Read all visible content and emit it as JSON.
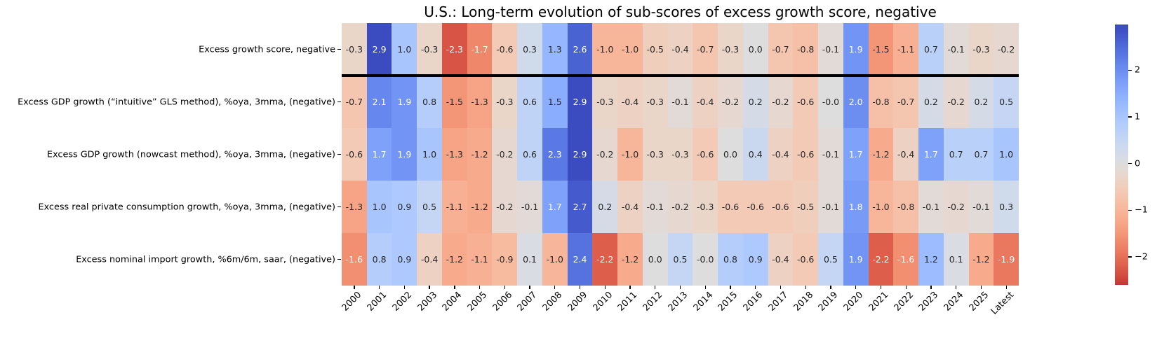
{
  "chart_data": {
    "type": "heatmap",
    "title": "U.S.: Long-term evolution of sub-scores of excess growth score, negative",
    "columns": [
      "2000",
      "2001",
      "2002",
      "2003",
      "2004",
      "2005",
      "2006",
      "2007",
      "2008",
      "2009",
      "2010",
      "2011",
      "2012",
      "2013",
      "2014",
      "2015",
      "2016",
      "2017",
      "2018",
      "2019",
      "2020",
      "2021",
      "2022",
      "2023",
      "2024",
      "2025",
      "Latest"
    ],
    "rows": [
      {
        "label": "Excess growth score, negative",
        "values": [
          "-0.3",
          "2.9",
          "1.0",
          "-0.3",
          "-2.3",
          "-1.7",
          "-0.6",
          "0.3",
          "1.3",
          "2.6",
          "-1.0",
          "-1.0",
          "-0.5",
          "-0.4",
          "-0.7",
          "-0.3",
          "0.0",
          "-0.7",
          "-0.8",
          "-0.1",
          "1.9",
          "-1.5",
          "-1.1",
          "0.7",
          "-0.1",
          "-0.3",
          "-0.2"
        ]
      },
      {
        "label": "Excess GDP growth (“intuitive” GLS method), %oya, 3mma, (negative)",
        "values": [
          "-0.7",
          "2.1",
          "1.9",
          "0.8",
          "-1.5",
          "-1.3",
          "-0.3",
          "0.6",
          "1.5",
          "2.9",
          "-0.3",
          "-0.4",
          "-0.3",
          "-0.1",
          "-0.4",
          "-0.2",
          "0.2",
          "-0.2",
          "-0.6",
          "-0.0",
          "2.0",
          "-0.8",
          "-0.7",
          "0.2",
          "-0.2",
          "0.2",
          "0.5"
        ]
      },
      {
        "label": "Excess GDP growth (nowcast method), %oya, 3mma, (negative)",
        "values": [
          "-0.6",
          "1.7",
          "1.9",
          "1.0",
          "-1.3",
          "-1.2",
          "-0.2",
          "0.6",
          "2.3",
          "2.9",
          "-0.2",
          "-1.0",
          "-0.3",
          "-0.3",
          "-0.6",
          "0.0",
          "0.4",
          "-0.4",
          "-0.6",
          "-0.1",
          "1.7",
          "-1.2",
          "-0.4",
          "1.7",
          "0.7",
          "0.7",
          "1.0"
        ]
      },
      {
        "label": "Excess real private consumption growth, %oya, 3mma, (negative)",
        "values": [
          "-1.3",
          "1.0",
          "0.9",
          "0.5",
          "-1.1",
          "-1.2",
          "-0.2",
          "-0.1",
          "1.7",
          "2.7",
          "0.2",
          "-0.4",
          "-0.1",
          "-0.2",
          "-0.3",
          "-0.6",
          "-0.6",
          "-0.6",
          "-0.5",
          "-0.1",
          "1.8",
          "-1.0",
          "-0.8",
          "-0.1",
          "-0.2",
          "-0.1",
          "0.3"
        ]
      },
      {
        "label": "Excess nominal import growth, %6m/6m, saar, (negative)",
        "values": [
          "-1.6",
          "0.8",
          "0.9",
          "-0.4",
          "-1.2",
          "-1.1",
          "-0.9",
          "0.1",
          "-1.0",
          "2.4",
          "-2.2",
          "-1.2",
          "0.0",
          "0.5",
          "-0.0",
          "0.8",
          "0.9",
          "-0.4",
          "-0.6",
          "0.5",
          "1.9",
          "-2.2",
          "-1.6",
          "1.2",
          "0.1",
          "-1.2",
          "-1.9"
        ]
      }
    ],
    "separator_below_row_index": 0,
    "color_scale": {
      "name": "coolwarm_r",
      "vmin": -2.9,
      "vmax": 2.9,
      "colorbar_top_value": 2.98,
      "colorbar_bottom_value": -2.6,
      "colorbar_ticks": [
        {
          "label": "2",
          "value": 2
        },
        {
          "label": "1",
          "value": 1
        },
        {
          "label": "0",
          "value": 0
        },
        {
          "label": "−1",
          "value": -1
        },
        {
          "label": "−2",
          "value": -2
        }
      ],
      "stops": [
        [
          59,
          76,
          192
        ],
        [
          68,
          90,
          204
        ],
        [
          77,
          104,
          215
        ],
        [
          87,
          117,
          225
        ],
        [
          98,
          130,
          234
        ],
        [
          108,
          142,
          241
        ],
        [
          119,
          154,
          247
        ],
        [
          130,
          165,
          251
        ],
        [
          141,
          176,
          254
        ],
        [
          152,
          185,
          255
        ],
        [
          163,
          194,
          255
        ],
        [
          174,
          201,
          253
        ],
        [
          184,
          208,
          249
        ],
        [
          194,
          213,
          244
        ],
        [
          204,
          217,
          238
        ],
        [
          213,
          219,
          230
        ],
        [
          221,
          221,
          221
        ],
        [
          229,
          216,
          209
        ],
        [
          236,
          211,
          197
        ],
        [
          241,
          204,
          185
        ],
        [
          245,
          196,
          173
        ],
        [
          247,
          187,
          160
        ],
        [
          247,
          177,
          148
        ],
        [
          247,
          166,
          135
        ],
        [
          244,
          154,
          123
        ],
        [
          241,
          141,
          111
        ],
        [
          236,
          127,
          99
        ],
        [
          229,
          112,
          88
        ],
        [
          222,
          96,
          77
        ],
        [
          213,
          80,
          66
        ],
        [
          203,
          62,
          56
        ],
        [
          192,
          40,
          47
        ],
        [
          180,
          4,
          38
        ]
      ],
      "annotation_dark_text": "#262626",
      "annotation_light_text": "#ffffff",
      "luminance_threshold": 0.408
    }
  }
}
